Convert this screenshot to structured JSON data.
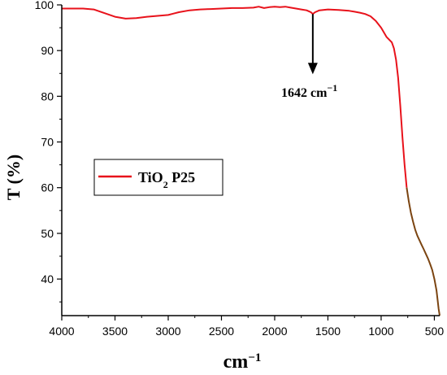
{
  "chart_data": {
    "type": "line",
    "xlabel": "cm",
    "xlabel_sup": "−1",
    "ylabel": "T (%)",
    "xlim": [
      4000,
      450
    ],
    "x_reversed": true,
    "ylim": [
      32,
      100
    ],
    "x_ticks": [
      4000,
      3500,
      3000,
      2500,
      2000,
      1500,
      1000,
      500
    ],
    "y_ticks": [
      40,
      50,
      60,
      70,
      80,
      90,
      100
    ],
    "legend": {
      "position": "left-middle",
      "label_main": "TiO",
      "label_sub": "2",
      "label_tail": " P25"
    },
    "annotation": {
      "x": 1642,
      "y": 98,
      "text": "1642 cm",
      "text_sup": "−1"
    },
    "series": [
      {
        "name": "TiO2 P25",
        "color": "#e8121b",
        "x": [
          4000,
          3800,
          3700,
          3600,
          3500,
          3400,
          3300,
          3200,
          3100,
          3000,
          2950,
          2900,
          2800,
          2700,
          2600,
          2500,
          2400,
          2300,
          2200,
          2150,
          2100,
          2050,
          2000,
          1950,
          1900,
          1850,
          1800,
          1750,
          1700,
          1660,
          1642,
          1620,
          1580,
          1500,
          1400,
          1300,
          1250,
          1200,
          1150,
          1100,
          1050,
          1000,
          950,
          900,
          880,
          860,
          840,
          820,
          800,
          780,
          760
        ],
        "y": [
          99.2,
          99.2,
          99.0,
          98.2,
          97.4,
          97.0,
          97.1,
          97.4,
          97.6,
          97.8,
          98.1,
          98.4,
          98.8,
          99.0,
          99.1,
          99.2,
          99.3,
          99.3,
          99.4,
          99.6,
          99.3,
          99.5,
          99.6,
          99.5,
          99.6,
          99.4,
          99.2,
          99.0,
          98.8,
          98.4,
          98.0,
          98.4,
          98.8,
          99.0,
          98.9,
          98.7,
          98.5,
          98.3,
          98.0,
          97.5,
          96.5,
          95.0,
          93.0,
          91.8,
          90.5,
          88.0,
          84.0,
          78.0,
          71.0,
          65.0,
          60.0
        ]
      },
      {
        "name": "",
        "color": "#7b4411",
        "x": [
          760,
          740,
          720,
          700,
          680,
          660,
          640,
          620,
          600,
          580,
          560,
          540,
          520,
          500,
          480,
          470,
          460,
          450
        ],
        "y": [
          60.0,
          57.0,
          54.5,
          52.5,
          50.8,
          49.5,
          48.5,
          47.5,
          46.5,
          45.5,
          44.5,
          43.3,
          42.0,
          40.0,
          37.5,
          35.5,
          33.5,
          32.0
        ]
      }
    ]
  }
}
